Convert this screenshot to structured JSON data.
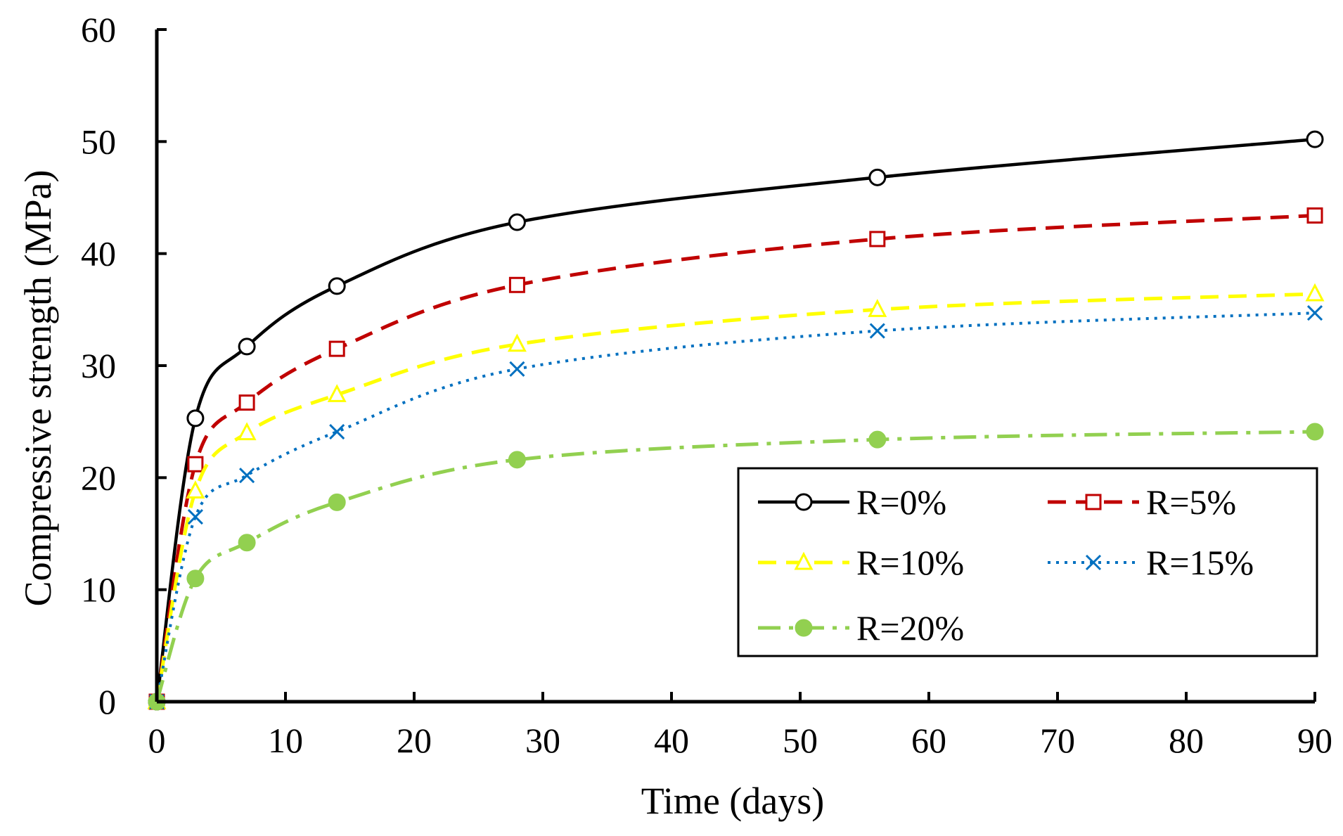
{
  "chart_data": {
    "type": "line",
    "title": "",
    "xlabel": "Time (days)",
    "ylabel": "Compressive strength (MPa)",
    "xlim": [
      0,
      90
    ],
    "ylim": [
      0,
      60
    ],
    "xticks": [
      0,
      10,
      20,
      30,
      40,
      50,
      60,
      70,
      80,
      90
    ],
    "yticks": [
      0,
      10,
      20,
      30,
      40,
      50,
      60
    ],
    "grid": false,
    "legend_position": "lower-right",
    "series": [
      {
        "name": "R=0%",
        "color": "#000000",
        "dash": "solid",
        "marker": "circle-open",
        "x": [
          0,
          3,
          7,
          14,
          28,
          56,
          90
        ],
        "y": [
          0,
          25.3,
          31.7,
          37.1,
          42.8,
          46.8,
          50.2
        ]
      },
      {
        "name": "R=5%",
        "color": "#c00000",
        "dash": "dashed",
        "marker": "square-open",
        "x": [
          0,
          3,
          7,
          14,
          28,
          56,
          90
        ],
        "y": [
          0,
          21.2,
          26.7,
          31.5,
          37.2,
          41.3,
          43.4
        ]
      },
      {
        "name": "R=10%",
        "color": "#ffff00",
        "dash": "dashed",
        "marker": "triangle-open",
        "x": [
          0,
          3,
          7,
          14,
          28,
          56,
          90
        ],
        "y": [
          0,
          18.8,
          24.0,
          27.4,
          31.9,
          35.0,
          36.4
        ]
      },
      {
        "name": "R=15%",
        "color": "#0070c0",
        "dash": "dotted",
        "marker": "x",
        "x": [
          0,
          3,
          7,
          14,
          28,
          56,
          90
        ],
        "y": [
          0,
          16.5,
          20.2,
          24.1,
          29.7,
          33.1,
          34.7
        ]
      },
      {
        "name": "R=20%",
        "color": "#92d050",
        "dash": "dashdot",
        "marker": "circle-filled",
        "x": [
          0,
          3,
          7,
          14,
          28,
          56,
          90
        ],
        "y": [
          0,
          11.0,
          14.2,
          17.8,
          21.6,
          23.4,
          24.1
        ]
      }
    ]
  }
}
